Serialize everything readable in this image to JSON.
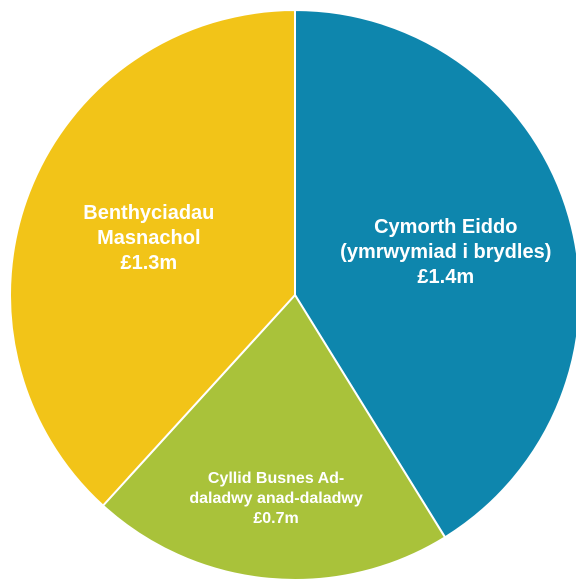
{
  "chart_data": {
    "type": "pie",
    "categories": [
      "Cymorth Eiddo (ymrwymiad i brydles)",
      "Cyllid Busnes Ad-daladwy anad-daladwy",
      "Benthyciadau Masnachol"
    ],
    "values": [
      1.4,
      0.7,
      1.3
    ],
    "value_labels": [
      "£1.4m",
      "£0.7m",
      "£1.3m"
    ],
    "colors": [
      "#0e86ad",
      "#a9c23a",
      "#f2c418"
    ]
  }
}
